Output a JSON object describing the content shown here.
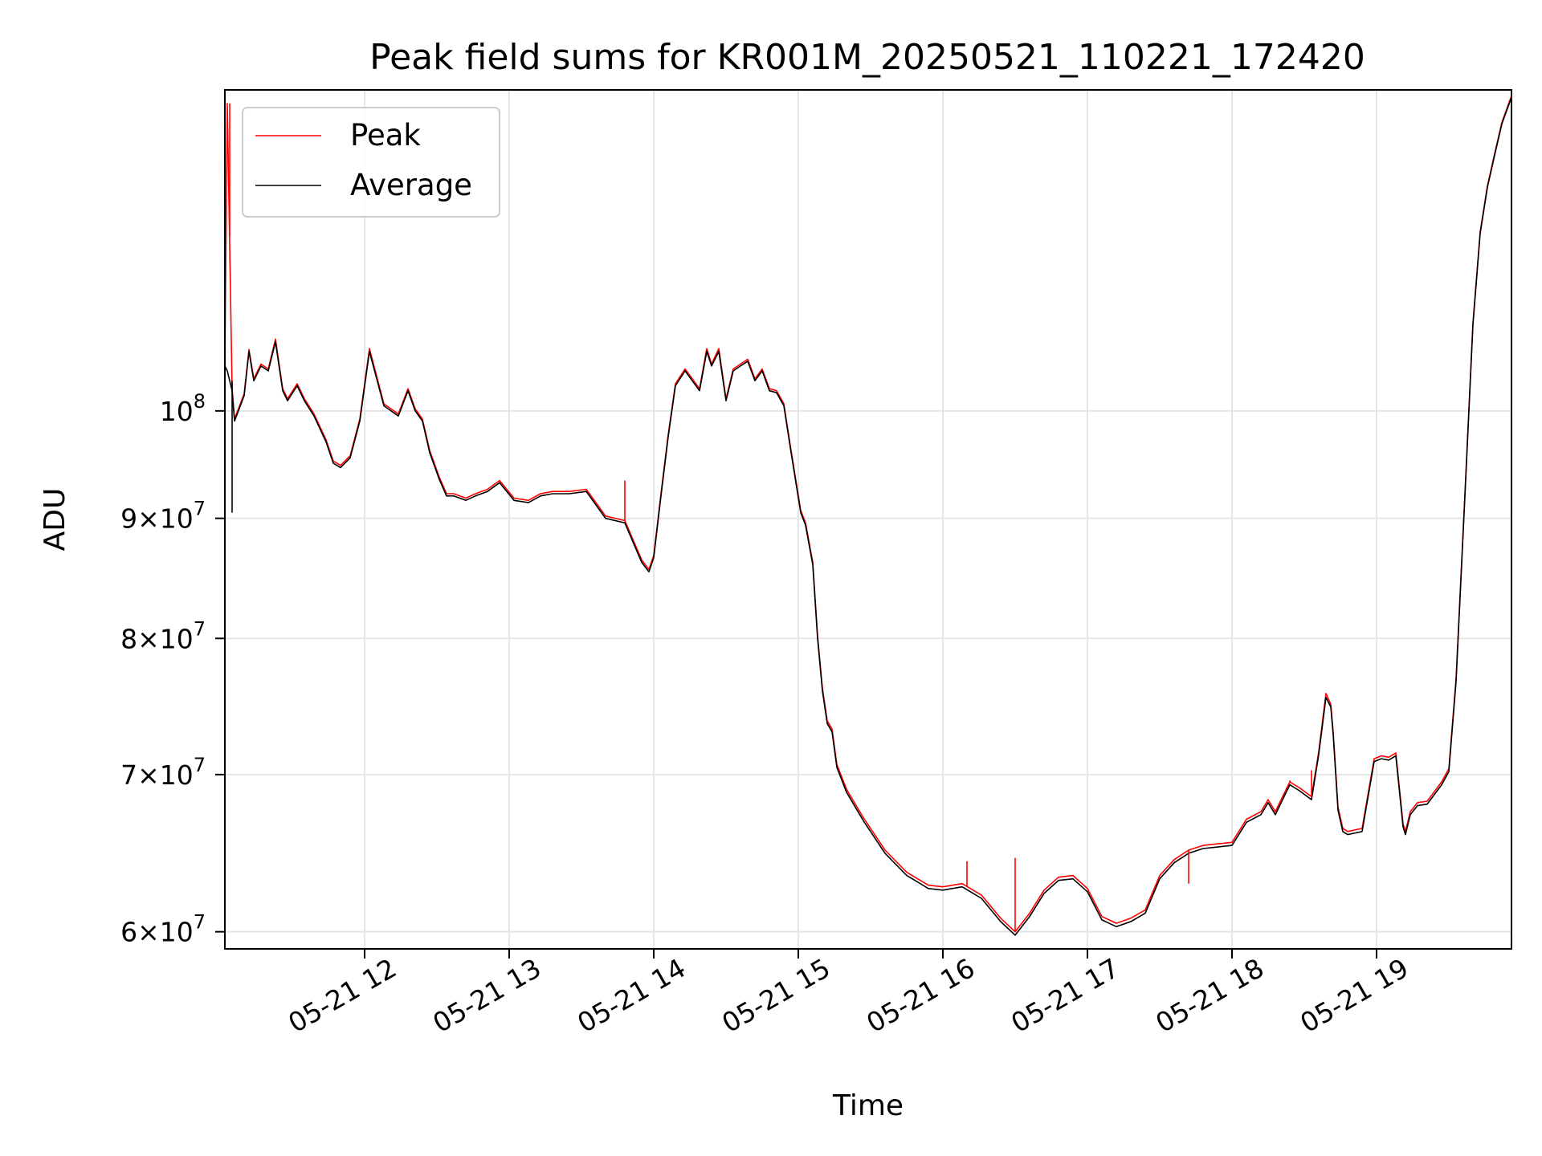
{
  "chart_data": {
    "type": "line",
    "title": "Peak field sums for KR001M_20250521_110221_172420",
    "xlabel": "Time",
    "ylabel": "ADU",
    "y_scale": "log",
    "xlim": [
      "2025-05-21 11:02",
      "2025-05-21 19:56"
    ],
    "ylim": [
      59000000,
      137000000
    ],
    "grid": true,
    "legend": {
      "placement": "top-left"
    },
    "x_tick_labels": [
      "05-21 12",
      "05-21 13",
      "05-21 14",
      "05-21 15",
      "05-21 16",
      "05-21 17",
      "05-21 18",
      "05-21 19"
    ],
    "y_tick_labels": [
      {
        "value": 60000000,
        "mantissa": "6",
        "exponent": "7"
      },
      {
        "value": 70000000,
        "mantissa": "7",
        "exponent": "7"
      },
      {
        "value": 80000000,
        "mantissa": "8",
        "exponent": "7"
      },
      {
        "value": 90000000,
        "mantissa": "9",
        "exponent": "7"
      },
      {
        "value": 100000000,
        "mantissa": "",
        "exponent": "8"
      }
    ],
    "x": [
      "2025-05-21 11:02",
      "2025-05-21 11:03",
      "2025-05-21 11:05",
      "2025-05-21 11:06",
      "2025-05-21 11:10",
      "2025-05-21 11:12",
      "2025-05-21 11:14",
      "2025-05-21 11:17",
      "2025-05-21 11:20",
      "2025-05-21 11:23",
      "2025-05-21 11:26",
      "2025-05-21 11:28",
      "2025-05-21 11:32",
      "2025-05-21 11:35",
      "2025-05-21 11:39",
      "2025-05-21 11:44",
      "2025-05-21 11:47",
      "2025-05-21 11:50",
      "2025-05-21 11:54",
      "2025-05-21 11:58",
      "2025-05-21 12:02",
      "2025-05-21 12:08",
      "2025-05-21 12:14",
      "2025-05-21 12:18",
      "2025-05-21 12:21",
      "2025-05-21 12:24",
      "2025-05-21 12:27",
      "2025-05-21 12:31",
      "2025-05-21 12:34",
      "2025-05-21 12:37",
      "2025-05-21 12:42",
      "2025-05-21 12:46",
      "2025-05-21 12:51",
      "2025-05-21 12:56",
      "2025-05-21 13:02",
      "2025-05-21 13:08",
      "2025-05-21 13:13",
      "2025-05-21 13:18",
      "2025-05-21 13:25",
      "2025-05-21 13:32",
      "2025-05-21 13:40",
      "2025-05-21 13:48",
      "2025-05-21 13:55",
      "2025-05-21 13:58",
      "2025-05-21 14:00",
      "2025-05-21 14:03",
      "2025-05-21 14:06",
      "2025-05-21 14:09",
      "2025-05-21 14:13",
      "2025-05-21 14:16",
      "2025-05-21 14:19",
      "2025-05-21 14:22",
      "2025-05-21 14:24",
      "2025-05-21 14:27",
      "2025-05-21 14:30",
      "2025-05-21 14:33",
      "2025-05-21 14:36",
      "2025-05-21 14:39",
      "2025-05-21 14:42",
      "2025-05-21 14:45",
      "2025-05-21 14:48",
      "2025-05-21 14:51",
      "2025-05-21 14:54",
      "2025-05-21 14:57",
      "2025-05-21 15:01",
      "2025-05-21 15:03",
      "2025-05-21 15:06",
      "2025-05-21 15:08",
      "2025-05-21 15:10",
      "2025-05-21 15:12",
      "2025-05-21 15:14",
      "2025-05-21 15:16",
      "2025-05-21 15:20",
      "2025-05-21 15:27",
      "2025-05-21 15:36",
      "2025-05-21 15:45",
      "2025-05-21 15:54",
      "2025-05-21 16:00",
      "2025-05-21 16:08",
      "2025-05-21 16:16",
      "2025-05-21 16:24",
      "2025-05-21 16:30",
      "2025-05-21 16:36",
      "2025-05-21 16:42",
      "2025-05-21 16:48",
      "2025-05-21 16:54",
      "2025-05-21 17:00",
      "2025-05-21 17:06",
      "2025-05-21 17:12",
      "2025-05-21 17:18",
      "2025-05-21 17:24",
      "2025-05-21 17:30",
      "2025-05-21 17:36",
      "2025-05-21 17:42",
      "2025-05-21 17:48",
      "2025-05-21 17:54",
      "2025-05-21 18:00",
      "2025-05-21 18:06",
      "2025-05-21 18:12",
      "2025-05-21 18:15",
      "2025-05-21 18:18",
      "2025-05-21 18:21",
      "2025-05-21 18:24",
      "2025-05-21 18:28",
      "2025-05-21 18:33",
      "2025-05-21 18:36",
      "2025-05-21 18:39",
      "2025-05-21 18:41",
      "2025-05-21 18:42",
      "2025-05-21 18:44",
      "2025-05-21 18:46",
      "2025-05-21 18:48",
      "2025-05-21 18:54",
      "2025-05-21 18:59",
      "2025-05-21 19:02",
      "2025-05-21 19:05",
      "2025-05-21 19:08",
      "2025-05-21 19:11",
      "2025-05-21 19:12",
      "2025-05-21 19:14",
      "2025-05-21 19:17",
      "2025-05-21 19:21",
      "2025-05-21 19:27",
      "2025-05-21 19:30",
      "2025-05-21 19:33",
      "2025-05-21 19:37",
      "2025-05-21 19:40",
      "2025-05-21 19:43",
      "2025-05-21 19:46",
      "2025-05-21 19:49",
      "2025-05-21 19:52",
      "2025-05-21 19:56"
    ],
    "series": [
      {
        "name": "Average",
        "color": "#000000",
        "values": [
          104500000,
          104000000,
          102000000,
          99000000,
          101500000,
          106000000,
          103000000,
          104500000,
          104000000,
          107000000,
          102000000,
          101000000,
          102500000,
          101000000,
          99500000,
          97000000,
          95000000,
          94600000,
          95500000,
          99000000,
          106000000,
          100500000,
          99500000,
          102000000,
          100000000,
          99000000,
          96000000,
          93500000,
          92000000,
          92000000,
          91600000,
          92000000,
          92400000,
          93200000,
          91600000,
          91400000,
          92000000,
          92200000,
          92200000,
          92400000,
          90000000,
          89600000,
          86200000,
          85400000,
          86600000,
          92000000,
          97500000,
          102500000,
          104000000,
          103000000,
          102000000,
          106000000,
          104500000,
          106000000,
          101000000,
          104000000,
          104500000,
          105000000,
          103000000,
          104000000,
          102000000,
          101800000,
          100500000,
          96000000,
          90500000,
          89400000,
          86000000,
          80000000,
          76000000,
          73600000,
          73000000,
          70500000,
          68800000,
          66900000,
          64800000,
          63400000,
          62600000,
          62500000,
          62700000,
          62000000,
          60600000,
          59800000,
          60900000,
          62300000,
          63100000,
          63200000,
          62400000,
          60700000,
          60300000,
          60600000,
          61100000,
          63200000,
          64200000,
          64800000,
          65100000,
          65200000,
          65300000,
          66800000,
          67300000,
          68100000,
          67300000,
          68300000,
          69300000,
          68900000,
          68300000,
          71400000,
          75500000,
          74800000,
          72800000,
          67600000,
          66200000,
          66000000,
          66200000,
          70900000,
          71100000,
          71000000,
          71300000,
          66500000,
          66000000,
          67300000,
          67900000,
          68000000,
          69300000,
          70200000,
          76700000,
          93500000,
          108800000,
          119000000,
          124500000,
          128500000,
          132500000,
          136000000
        ]
      },
      {
        "name": "Peak",
        "color": "#ff0000",
        "values": [
          104700000,
          135200000,
          102200000,
          99200000,
          101700000,
          106200000,
          103200000,
          104700000,
          104200000,
          107300000,
          102200000,
          101200000,
          102700000,
          101200000,
          99700000,
          97200000,
          95200000,
          94800000,
          95700000,
          99200000,
          106300000,
          100700000,
          99700000,
          102200000,
          100200000,
          99200000,
          96200000,
          93700000,
          92200000,
          92200000,
          91800000,
          92200000,
          92600000,
          93400000,
          91800000,
          91600000,
          92200000,
          92400000,
          92400000,
          92600000,
          90200000,
          89800000,
          86400000,
          85600000,
          86800000,
          92200000,
          97700000,
          102700000,
          104200000,
          103200000,
          102200000,
          106300000,
          104700000,
          106300000,
          101200000,
          104200000,
          104700000,
          105200000,
          103200000,
          104200000,
          102200000,
          102000000,
          100700000,
          96200000,
          90700000,
          89600000,
          86200000,
          80200000,
          76200000,
          73800000,
          73200000,
          70700000,
          69000000,
          67100000,
          65000000,
          63600000,
          62800000,
          62700000,
          62900000,
          62200000,
          60800000,
          60000000,
          61100000,
          62500000,
          63300000,
          63400000,
          62600000,
          60900000,
          60500000,
          60800000,
          61300000,
          63400000,
          64400000,
          65000000,
          65300000,
          65400000,
          65500000,
          67000000,
          67500000,
          68300000,
          67500000,
          68500000,
          69500000,
          69100000,
          68500000,
          71600000,
          75800000,
          75000000,
          73000000,
          67800000,
          66400000,
          66200000,
          66400000,
          71100000,
          71300000,
          71200000,
          71500000,
          66700000,
          66200000,
          67500000,
          68100000,
          68200000,
          69500000,
          70400000,
          76900000,
          93700000,
          109000000,
          119200000,
          124700000,
          128700000,
          132700000,
          136200000
        ],
        "spikes": [
          {
            "x": "2025-05-21 11:04",
            "value": 135200000
          },
          {
            "x": "2025-05-21 13:48",
            "value": 93400000
          },
          {
            "x": "2025-05-21 16:10",
            "value": 64300000
          },
          {
            "x": "2025-05-21 16:30",
            "value": 64500000
          },
          {
            "x": "2025-05-21 17:42",
            "value": 62900000
          },
          {
            "x": "2025-05-21 18:24",
            "value": 69600000
          },
          {
            "x": "2025-05-21 18:33",
            "value": 70300000
          }
        ]
      }
    ],
    "dip": {
      "x": "2025-05-21 11:05",
      "value": 90500000
    }
  }
}
